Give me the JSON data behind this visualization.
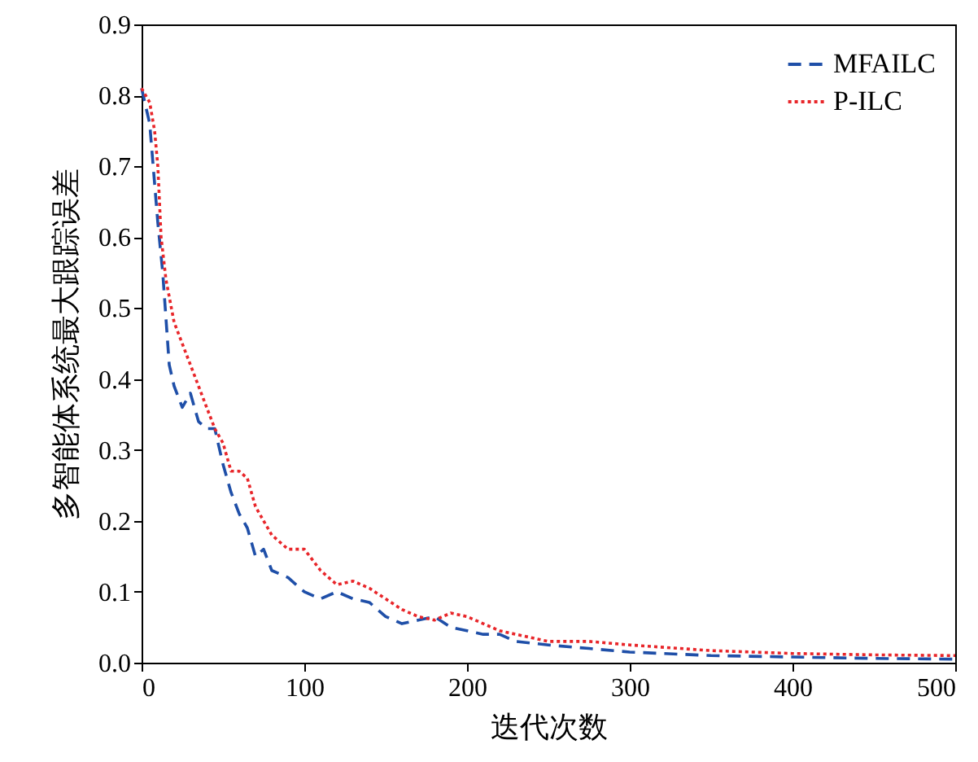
{
  "chart_data": {
    "type": "line",
    "xlabel": "迭代次数",
    "ylabel": "多智能体系统最大跟踪误差",
    "xlim": [
      0,
      500
    ],
    "ylim": [
      0,
      0.9
    ],
    "xticks": [
      0,
      100,
      200,
      300,
      400,
      500
    ],
    "yticks": [
      {
        "value": 0,
        "label": "0.0"
      },
      0.1,
      0.2,
      0.3,
      0.4,
      0.5,
      0.6,
      0.7,
      0.8,
      0.9
    ],
    "grid": false,
    "legend": "top right",
    "series": [
      {
        "name": "MFAILC",
        "color": "#1f4fa8",
        "line_style": "dashed",
        "x": [
          0,
          5,
          10,
          13,
          17,
          20,
          25,
          30,
          35,
          40,
          45,
          50,
          55,
          60,
          65,
          70,
          75,
          80,
          90,
          100,
          110,
          120,
          130,
          140,
          150,
          160,
          170,
          180,
          190,
          200,
          210,
          220,
          230,
          250,
          275,
          300,
          350,
          400,
          450,
          500
        ],
        "values": [
          0.81,
          0.76,
          0.62,
          0.55,
          0.42,
          0.39,
          0.36,
          0.38,
          0.34,
          0.33,
          0.33,
          0.28,
          0.24,
          0.21,
          0.19,
          0.15,
          0.16,
          0.13,
          0.12,
          0.1,
          0.09,
          0.1,
          0.09,
          0.085,
          0.065,
          0.055,
          0.06,
          0.065,
          0.05,
          0.045,
          0.04,
          0.04,
          0.03,
          0.025,
          0.02,
          0.015,
          0.01,
          0.008,
          0.006,
          0.005
        ]
      },
      {
        "name": "P-ILC",
        "color": "#e8262a",
        "line_style": "dotted",
        "x": [
          0,
          5,
          8,
          10,
          12,
          15,
          20,
          25,
          30,
          35,
          40,
          45,
          50,
          55,
          60,
          65,
          70,
          75,
          80,
          90,
          100,
          110,
          120,
          130,
          140,
          150,
          160,
          170,
          180,
          190,
          200,
          210,
          220,
          230,
          240,
          250,
          275,
          300,
          350,
          400,
          450,
          500
        ],
        "values": [
          0.81,
          0.79,
          0.75,
          0.7,
          0.6,
          0.54,
          0.48,
          0.45,
          0.42,
          0.39,
          0.36,
          0.33,
          0.31,
          0.27,
          0.27,
          0.26,
          0.22,
          0.2,
          0.18,
          0.16,
          0.16,
          0.13,
          0.11,
          0.115,
          0.105,
          0.09,
          0.075,
          0.065,
          0.06,
          0.07,
          0.065,
          0.055,
          0.045,
          0.04,
          0.035,
          0.03,
          0.03,
          0.025,
          0.017,
          0.013,
          0.011,
          0.01
        ]
      }
    ]
  }
}
